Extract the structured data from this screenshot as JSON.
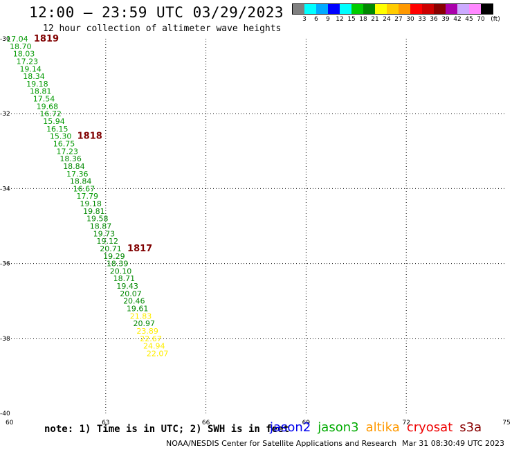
{
  "header": {
    "title": "12:00 — 23:59 UTC 03/29/2023",
    "subtitle": "12 hour collection of altimeter wave heights"
  },
  "legend": {
    "colors": [
      "#808080",
      "#00ffff",
      "#00aaff",
      "#0000ff",
      "#00ffff",
      "#00cc00",
      "#008800",
      "#ffff00",
      "#ffcc00",
      "#ff9900",
      "#ff0000",
      "#cc0000",
      "#880000",
      "#aa00aa",
      "#ccaaff",
      "#ff88ff",
      "#000000"
    ],
    "labels": [
      "3",
      "6",
      "9",
      "12",
      "15",
      "18",
      "21",
      "24",
      "27",
      "30",
      "33",
      "36",
      "39",
      "42",
      "45",
      "70"
    ],
    "unit": "(ft)"
  },
  "map": {
    "lon_ticks": [
      "60",
      "63",
      "66",
      "69",
      "72",
      "75"
    ],
    "lat_ticks": [
      "-30",
      "-32",
      "-34",
      "-36",
      "-38",
      "-40"
    ]
  },
  "chart_data": {
    "type": "scatter",
    "xlabel": "",
    "ylabel": "",
    "xlim": [
      60,
      75
    ],
    "ylim": [
      -40,
      -30
    ],
    "grid": true,
    "points": [
      {
        "lon": 60.35,
        "lat": -30.0,
        "value": "17.04",
        "color": "#009900"
      },
      {
        "lon": 60.45,
        "lat": -30.2,
        "value": "18.70",
        "color": "#009900"
      },
      {
        "lon": 60.55,
        "lat": -30.4,
        "value": "18.03",
        "color": "#009900"
      },
      {
        "lon": 60.65,
        "lat": -30.6,
        "value": "17.23",
        "color": "#009900"
      },
      {
        "lon": 60.75,
        "lat": -30.8,
        "value": "19.14",
        "color": "#009900"
      },
      {
        "lon": 60.85,
        "lat": -31.0,
        "value": "18.34",
        "color": "#009900"
      },
      {
        "lon": 60.95,
        "lat": -31.2,
        "value": "19.18",
        "color": "#009900"
      },
      {
        "lon": 61.05,
        "lat": -31.4,
        "value": "18.81",
        "color": "#009900"
      },
      {
        "lon": 61.15,
        "lat": -31.6,
        "value": "17.54",
        "color": "#009900"
      },
      {
        "lon": 61.25,
        "lat": -31.8,
        "value": "19.68",
        "color": "#009900"
      },
      {
        "lon": 61.35,
        "lat": -32.0,
        "value": "16.72",
        "color": "#009900"
      },
      {
        "lon": 61.45,
        "lat": -32.2,
        "value": "15.94",
        "color": "#009900"
      },
      {
        "lon": 61.55,
        "lat": -32.4,
        "value": "16.15",
        "color": "#009900"
      },
      {
        "lon": 61.65,
        "lat": -32.6,
        "value": "15.30",
        "color": "#009900"
      },
      {
        "lon": 61.75,
        "lat": -32.8,
        "value": "16.75",
        "color": "#009900"
      },
      {
        "lon": 61.85,
        "lat": -33.0,
        "value": "17.23",
        "color": "#009900"
      },
      {
        "lon": 61.95,
        "lat": -33.2,
        "value": "18.36",
        "color": "#008800"
      },
      {
        "lon": 62.05,
        "lat": -33.4,
        "value": "18.84",
        "color": "#008800"
      },
      {
        "lon": 62.15,
        "lat": -33.6,
        "value": "17.36",
        "color": "#009900"
      },
      {
        "lon": 62.25,
        "lat": -33.8,
        "value": "18.84",
        "color": "#008800"
      },
      {
        "lon": 62.35,
        "lat": -34.0,
        "value": "16.67",
        "color": "#009900"
      },
      {
        "lon": 62.45,
        "lat": -34.2,
        "value": "17.79",
        "color": "#009900"
      },
      {
        "lon": 62.55,
        "lat": -34.4,
        "value": "19.18",
        "color": "#008800"
      },
      {
        "lon": 62.65,
        "lat": -34.6,
        "value": "19.81",
        "color": "#008800"
      },
      {
        "lon": 62.75,
        "lat": -34.8,
        "value": "19.58",
        "color": "#008800"
      },
      {
        "lon": 62.85,
        "lat": -35.0,
        "value": "18.87",
        "color": "#008800"
      },
      {
        "lon": 62.95,
        "lat": -35.2,
        "value": "19.73",
        "color": "#008800"
      },
      {
        "lon": 63.05,
        "lat": -35.4,
        "value": "19.12",
        "color": "#008800"
      },
      {
        "lon": 63.15,
        "lat": -35.6,
        "value": "20.71",
        "color": "#008800"
      },
      {
        "lon": 63.25,
        "lat": -35.8,
        "value": "19.29",
        "color": "#008800"
      },
      {
        "lon": 63.35,
        "lat": -36.0,
        "value": "18.39",
        "color": "#008800"
      },
      {
        "lon": 63.45,
        "lat": -36.2,
        "value": "20.10",
        "color": "#008800"
      },
      {
        "lon": 63.55,
        "lat": -36.4,
        "value": "18.71",
        "color": "#008800"
      },
      {
        "lon": 63.65,
        "lat": -36.6,
        "value": "19.43",
        "color": "#008800"
      },
      {
        "lon": 63.75,
        "lat": -36.8,
        "value": "20.07",
        "color": "#008800"
      },
      {
        "lon": 63.85,
        "lat": -37.0,
        "value": "20.46",
        "color": "#008800"
      },
      {
        "lon": 63.95,
        "lat": -37.2,
        "value": "19.61",
        "color": "#008800"
      },
      {
        "lon": 64.05,
        "lat": -37.4,
        "value": "21.83",
        "color": "#ffee00"
      },
      {
        "lon": 64.15,
        "lat": -37.6,
        "value": "20.97",
        "color": "#008800"
      },
      {
        "lon": 64.25,
        "lat": -37.8,
        "value": "23.89",
        "color": "#ffee00"
      },
      {
        "lon": 64.35,
        "lat": -38.0,
        "value": "22.67",
        "color": "#ffee00"
      },
      {
        "lon": 64.45,
        "lat": -38.2,
        "value": "24.94",
        "color": "#ffee00"
      },
      {
        "lon": 64.55,
        "lat": -38.4,
        "value": "22.07",
        "color": "#ffee00"
      }
    ],
    "time_labels": [
      {
        "text": "1819",
        "anchor": 0
      },
      {
        "text": "1818",
        "anchor": 13
      },
      {
        "text": "1817",
        "anchor": 28
      }
    ],
    "time_label_color": "#800000"
  },
  "footer": {
    "note": "note: 1) Time is in UTC; 2) SWH is in feet",
    "satellites": [
      {
        "name": "jason2",
        "color": "#0000ee"
      },
      {
        "name": "jason3",
        "color": "#00aa00"
      },
      {
        "name": "altika",
        "color": "#ff9900"
      },
      {
        "name": "cryosat",
        "color": "#ee0000"
      },
      {
        "name": "s3a",
        "color": "#880000"
      }
    ],
    "credit": "NOAA/NESDIS Center for Satellite Applications and Research",
    "timestamp": "Mar 31 08:30:49 UTC 2023"
  }
}
